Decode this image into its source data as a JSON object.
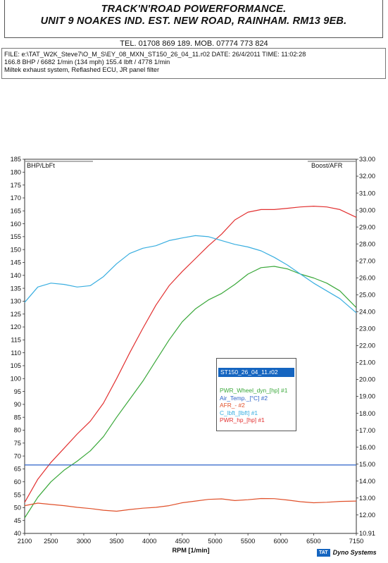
{
  "header": {
    "company_line1": "TRACK'N'ROAD POWERFORMANCE.",
    "company_line2": "UNIT 9 NOAKES IND. EST. NEW ROAD, RAINHAM. RM13 9EB.",
    "tel": "TEL. 01708 869 189. MOB. 07774 773 824"
  },
  "info": {
    "file_line": "FILE: e:\\TAT_W2K_Steve7\\O_M_S\\EY_08_MXN_ST150_26_04_11.r02  DATE: 26/4/2011  TIME: 11:02:28",
    "peak_line": "166.8 BHP / 6682 1/min (134 mph)    155.4 lbft / 4778 1/min",
    "mods_line": "Miltek exhaust system, Reflashed ECU, JR panel filter"
  },
  "legend": {
    "title": "ST150_26_04_11.r02",
    "items": [
      {
        "label": "PWR_Wheel_dyn_[hp] #1",
        "color": "#3aa83a"
      },
      {
        "label": "Air_Temp._[°C] #2",
        "color": "#2c62c8"
      },
      {
        "label": "AFR_- #2",
        "color": "#e0502a"
      },
      {
        "label": "C_lbft_[lbft] #1",
        "color": "#39aee0"
      },
      {
        "label": "PWR_hp_[hp] #1",
        "color": "#e23030"
      }
    ]
  },
  "footer": {
    "brand_box": "TAT",
    "brand_text": "Dyno Systems"
  },
  "chart_data": {
    "type": "line",
    "xlabel": "RPM  [1/min]",
    "ylabel_left": "BHP/LbFt",
    "ylabel_right": "Boost/AFR",
    "xlim": [
      2100,
      7150
    ],
    "ylim_left": [
      40,
      185
    ],
    "ylim_right": [
      10.91,
      33.0
    ],
    "x_ticks": [
      2100,
      2500,
      3000,
      3500,
      4000,
      4500,
      5000,
      5500,
      6000,
      6500,
      7150
    ],
    "y_ticks_left": [
      40,
      45,
      50,
      55,
      60,
      65,
      70,
      75,
      80,
      85,
      90,
      95,
      100,
      105,
      110,
      115,
      120,
      125,
      130,
      135,
      140,
      145,
      150,
      155,
      160,
      165,
      170,
      175,
      180,
      185
    ],
    "y_ticks_right": [
      "33.00",
      "32.00",
      "31.00",
      "30.00",
      "29.00",
      "28.00",
      "27.00",
      "26.00",
      "25.00",
      "24.00",
      "23.00",
      "22.00",
      "21.00",
      "20.00",
      "19.00",
      "18.00",
      "17.00",
      "16.00",
      "15.00",
      "14.00",
      "13.00",
      "12.00",
      "10.91"
    ],
    "grid": false,
    "series": [
      {
        "name": "PWR_Wheel_dyn_[hp] #1",
        "axis": "left",
        "color": "#3aa83a",
        "x": [
          2100,
          2300,
          2500,
          2700,
          2900,
          3100,
          3300,
          3500,
          3700,
          3900,
          4100,
          4300,
          4500,
          4700,
          4900,
          5100,
          5300,
          5500,
          5700,
          5900,
          6100,
          6300,
          6500,
          6700,
          6900,
          7150
        ],
        "y": [
          46,
          54,
          60,
          64.5,
          68,
          72,
          77.5,
          85,
          92,
          99,
          107,
          115,
          122,
          127,
          130.5,
          133,
          136.5,
          140.5,
          143,
          143.5,
          142.5,
          140.5,
          139,
          137,
          134,
          127.5
        ]
      },
      {
        "name": "PWR_hp_[hp] #1",
        "axis": "left",
        "color": "#e23030",
        "x": [
          2100,
          2300,
          2500,
          2700,
          2900,
          3100,
          3300,
          3500,
          3700,
          3900,
          4100,
          4300,
          4500,
          4700,
          4900,
          5100,
          5300,
          5500,
          5700,
          5900,
          6100,
          6300,
          6500,
          6700,
          6900,
          7150
        ],
        "y": [
          52,
          61,
          67.5,
          73,
          78.5,
          83.5,
          90.5,
          100,
          110,
          119.5,
          128.5,
          136,
          141.5,
          146.5,
          151.5,
          156,
          161.5,
          164.5,
          165.5,
          165.5,
          166,
          166.5,
          166.8,
          166.5,
          165.5,
          162.5
        ]
      },
      {
        "name": "C_lbft_[lbft] #1",
        "axis": "left",
        "color": "#39aee0",
        "x": [
          2100,
          2300,
          2500,
          2700,
          2900,
          3100,
          3300,
          3500,
          3700,
          3900,
          4100,
          4300,
          4500,
          4700,
          4900,
          5100,
          5300,
          5500,
          5700,
          5900,
          6100,
          6300,
          6500,
          6700,
          6900,
          7150
        ],
        "y": [
          129.5,
          135.5,
          137,
          136.5,
          135.5,
          136,
          139.5,
          144.5,
          148.5,
          150.5,
          151.5,
          153.5,
          154.5,
          155.4,
          155,
          153.5,
          152,
          151,
          149.5,
          147,
          144,
          140.5,
          137,
          134,
          131,
          125.5
        ]
      },
      {
        "name": "AFR_- #2",
        "axis": "right",
        "color": "#e0502a",
        "x": [
          2100,
          2300,
          2500,
          2700,
          2900,
          3100,
          3300,
          3500,
          3700,
          3900,
          4100,
          4300,
          4500,
          4700,
          4900,
          5100,
          5300,
          5500,
          5700,
          5900,
          6100,
          6300,
          6500,
          6700,
          6900,
          7150
        ],
        "y": [
          12.55,
          12.7,
          12.62,
          12.55,
          12.45,
          12.38,
          12.28,
          12.22,
          12.32,
          12.4,
          12.45,
          12.55,
          12.72,
          12.82,
          12.92,
          12.95,
          12.85,
          12.9,
          12.97,
          12.96,
          12.88,
          12.78,
          12.72,
          12.75,
          12.8,
          12.82
        ]
      },
      {
        "name": "Air_Temp._[°C] #2",
        "axis": "right",
        "color": "#2c62c8",
        "x": [
          2100,
          7150
        ],
        "y": [
          14.95,
          14.95
        ]
      }
    ]
  }
}
